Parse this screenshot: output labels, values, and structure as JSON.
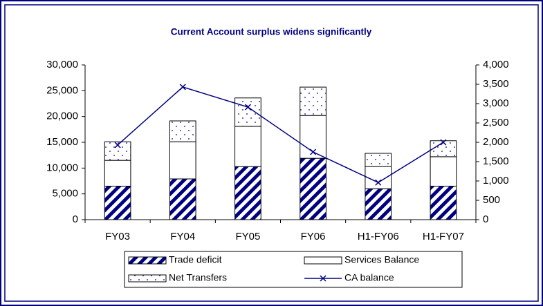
{
  "chart_data": {
    "type": "bar",
    "title": "Current Account surplus widens significantly",
    "categories": [
      "FY03",
      "FY04",
      "FY05",
      "FY06",
      "H1-FY06",
      "H1-FY07"
    ],
    "series": [
      {
        "name": "Trade deficit",
        "color": "#000080",
        "pattern": "stripes",
        "values": [
          6500,
          7900,
          10300,
          11900,
          6000,
          6500
        ]
      },
      {
        "name": "Services Balance",
        "color": "#000080",
        "pattern": "none",
        "values": [
          5000,
          7200,
          7800,
          8300,
          4300,
          5700
        ]
      },
      {
        "name": "Net Transfers",
        "color": "#000080",
        "pattern": "dots",
        "values": [
          3600,
          4050,
          5500,
          5500,
          2560,
          3100
        ]
      },
      {
        "name": "CA balance",
        "color": "#000080",
        "type": "line",
        "axis": "y2",
        "marker": "x",
        "values": [
          1930,
          3430,
          2910,
          1750,
          960,
          2000
        ]
      }
    ],
    "ylim": [
      0,
      30000
    ],
    "yticks": [
      0,
      {
        "value": 5000,
        "label": "5,000"
      },
      {
        "value": 10000,
        "label": "10,000"
      },
      {
        "value": 15000,
        "label": "15,000"
      },
      {
        "value": 20000,
        "label": "20,000"
      },
      {
        "value": 25000,
        "label": "25,000"
      },
      {
        "value": 30000,
        "label": "30,000"
      }
    ],
    "y2lim": [
      0,
      4000
    ],
    "y2ticks": [
      0,
      500,
      {
        "value": 1000,
        "label": "1,000"
      },
      {
        "value": 1500,
        "label": "1,500"
      },
      {
        "value": 2000,
        "label": "2,000"
      },
      {
        "value": 2500,
        "label": "2,500"
      },
      {
        "value": 3000,
        "label": "3,000"
      },
      {
        "value": 3500,
        "label": "3,500"
      },
      {
        "value": 4000,
        "label": "4,000"
      }
    ],
    "grid": false,
    "legend": "bottom"
  }
}
